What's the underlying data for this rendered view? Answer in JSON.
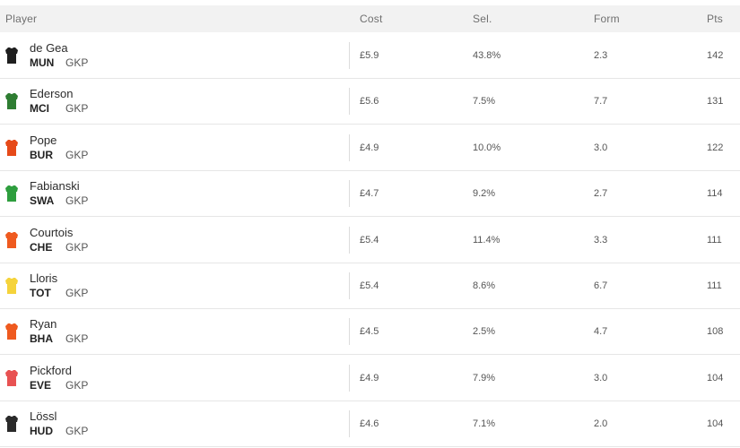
{
  "header": {
    "player": "Player",
    "cost": "Cost",
    "sel": "Sel.",
    "form": "Form",
    "pts": "Pts"
  },
  "rows": [
    {
      "name": "de Gea",
      "team": "MUN",
      "pos": "GKP",
      "cost": "£5.9",
      "sel": "43.8%",
      "form": "2.3",
      "pts": "142",
      "shirt_color": "#1f1f1f"
    },
    {
      "name": "Ederson",
      "team": "MCI",
      "pos": "GKP",
      "cost": "£5.6",
      "sel": "7.5%",
      "form": "7.7",
      "pts": "131",
      "shirt_color": "#2e7d32"
    },
    {
      "name": "Pope",
      "team": "BUR",
      "pos": "GKP",
      "cost": "£4.9",
      "sel": "10.0%",
      "form": "3.0",
      "pts": "122",
      "shirt_color": "#e64a19"
    },
    {
      "name": "Fabianski",
      "team": "SWA",
      "pos": "GKP",
      "cost": "£4.7",
      "sel": "9.2%",
      "form": "2.7",
      "pts": "114",
      "shirt_color": "#2e9e3e"
    },
    {
      "name": "Courtois",
      "team": "CHE",
      "pos": "GKP",
      "cost": "£5.4",
      "sel": "11.4%",
      "form": "3.3",
      "pts": "111",
      "shirt_color": "#ef5a1f"
    },
    {
      "name": "Lloris",
      "team": "TOT",
      "pos": "GKP",
      "cost": "£5.4",
      "sel": "8.6%",
      "form": "6.7",
      "pts": "111",
      "shirt_color": "#f5d33b"
    },
    {
      "name": "Ryan",
      "team": "BHA",
      "pos": "GKP",
      "cost": "£4.5",
      "sel": "2.5%",
      "form": "4.7",
      "pts": "108",
      "shirt_color": "#ef5a1f"
    },
    {
      "name": "Pickford",
      "team": "EVE",
      "pos": "GKP",
      "cost": "£4.9",
      "sel": "7.9%",
      "form": "3.0",
      "pts": "104",
      "shirt_color": "#e85252"
    },
    {
      "name": "Lössl",
      "team": "HUD",
      "pos": "GKP",
      "cost": "£4.6",
      "sel": "7.1%",
      "form": "2.0",
      "pts": "104",
      "shirt_color": "#2a2a2a"
    }
  ]
}
